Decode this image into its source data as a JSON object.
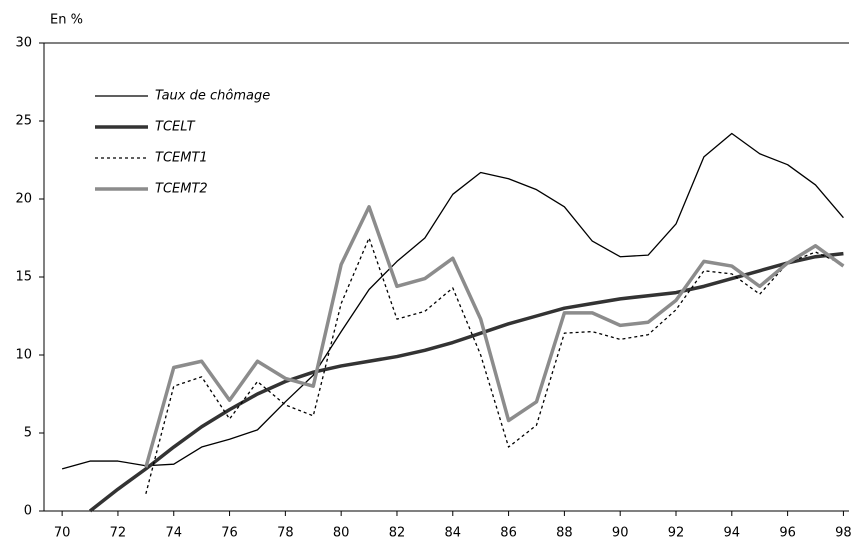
{
  "chart_data": {
    "type": "line",
    "y_label": "En %",
    "x": [
      70,
      71,
      72,
      73,
      74,
      75,
      76,
      77,
      78,
      79,
      80,
      81,
      82,
      83,
      84,
      85,
      86,
      87,
      88,
      89,
      90,
      91,
      92,
      93,
      94,
      95,
      96,
      97,
      98
    ],
    "series": [
      {
        "name": "Taux de chômage",
        "color": "#000000",
        "linestyle": "solid",
        "linewidth": 1.3,
        "values": [
          2.7,
          3.2,
          3.2,
          2.9,
          3.0,
          4.1,
          4.6,
          5.2,
          7.0,
          8.7,
          11.5,
          14.2,
          16.0,
          17.5,
          20.3,
          21.7,
          21.3,
          20.6,
          19.5,
          17.3,
          16.3,
          16.4,
          18.4,
          22.7,
          24.2,
          22.9,
          22.2,
          20.9,
          18.8
        ]
      },
      {
        "name": "TCELT",
        "color": "#333333",
        "linestyle": "solid",
        "linewidth": 3.5,
        "values": [
          null,
          0,
          1.4,
          2.7,
          4.1,
          5.4,
          6.5,
          7.5,
          8.3,
          8.9,
          9.3,
          9.6,
          9.9,
          10.3,
          10.8,
          11.4,
          12.0,
          12.5,
          13.0,
          13.3,
          13.6,
          13.8,
          14.0,
          14.4,
          14.9,
          15.4,
          15.9,
          16.3,
          16.5
        ]
      },
      {
        "name": "TCEMT1",
        "color": "#000000",
        "linestyle": "dotted",
        "linewidth": 1.3,
        "values": [
          null,
          null,
          null,
          1.1,
          8.0,
          8.6,
          5.9,
          8.3,
          6.8,
          6.1,
          13.3,
          17.5,
          12.3,
          12.8,
          14.3,
          10.0,
          4.1,
          5.5,
          11.4,
          11.5,
          11.0,
          11.3,
          12.9,
          15.4,
          15.2,
          13.9,
          15.9,
          16.6,
          15.8
        ]
      },
      {
        "name": "TCEMT2",
        "color": "#8c8c8c",
        "linestyle": "solid",
        "linewidth": 3.5,
        "values": [
          null,
          null,
          null,
          2.8,
          9.2,
          9.6,
          7.1,
          9.6,
          8.5,
          8.0,
          15.8,
          19.5,
          14.4,
          14.9,
          16.2,
          12.3,
          5.8,
          7.0,
          12.7,
          12.7,
          11.9,
          12.1,
          13.5,
          16.0,
          15.7,
          14.4,
          15.9,
          17.0,
          15.7
        ]
      }
    ],
    "xlim": [
      69.35,
      98.2
    ],
    "xticks": [
      70,
      72,
      74,
      76,
      78,
      80,
      82,
      84,
      86,
      88,
      90,
      92,
      94,
      96,
      98
    ],
    "ylim": [
      0,
      30
    ],
    "yticks": [
      0,
      5,
      10,
      15,
      20,
      25,
      30
    ],
    "legend": "upper left"
  }
}
